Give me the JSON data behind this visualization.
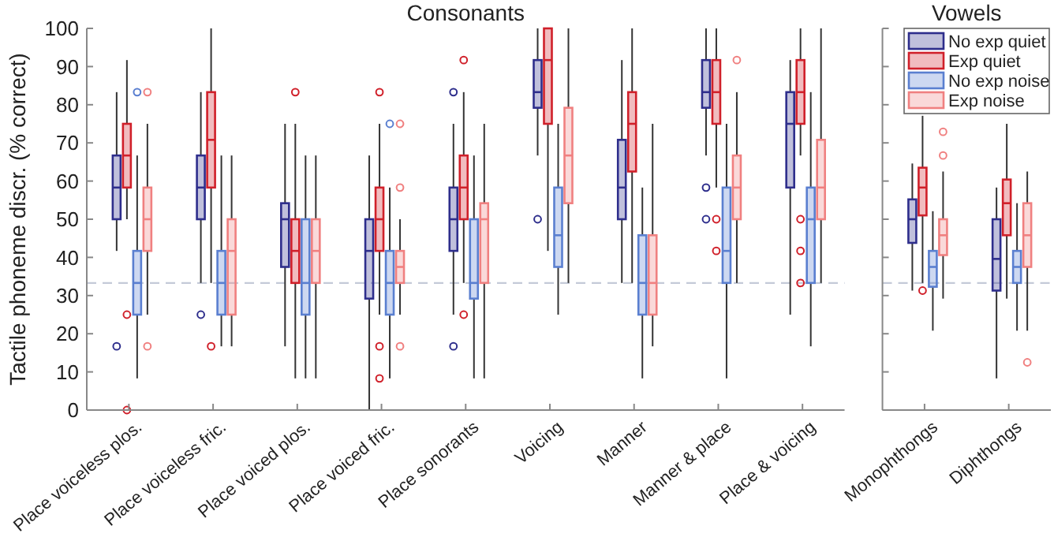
{
  "chart_data": [
    {
      "type": "box",
      "title": "Consonants",
      "ylabel": "Tactile phoneme discr. (% correct)",
      "categories": [
        "Place voiceless plos.",
        "Place voiceless fric.",
        "Place voiced plos.",
        "Place voiced fric.",
        "Place sonorants",
        "Voicing",
        "Manner",
        "Manner & place",
        "Place & voicing"
      ],
      "ylim": [
        0,
        100
      ],
      "yticks": [
        0,
        10,
        20,
        30,
        40,
        50,
        60,
        70,
        80,
        90,
        100
      ],
      "grid": false,
      "legend": false,
      "ref_lines": [
        {
          "axis": "y",
          "value": 33.3,
          "color": "#c4cad8",
          "line_style": "dashed"
        }
      ],
      "series": [
        {
          "color": "#2e2e8c",
          "boxes": [
            {
              "low": 41.7,
              "q1": 50,
              "median": 58.3,
              "q3": 66.7,
              "high": 83.3,
              "outliers": [
                16.7
              ]
            },
            {
              "low": 33.3,
              "q1": 50,
              "median": 58.3,
              "q3": 66.7,
              "high": 83.3,
              "outliers": [
                25
              ]
            },
            {
              "low": 16.7,
              "q1": 37.5,
              "median": 50,
              "q3": 54.2,
              "high": 75
            },
            {
              "low": 0,
              "q1": 29.2,
              "median": 41.7,
              "q3": 50,
              "high": 66.7
            },
            {
              "low": 25,
              "q1": 41.7,
              "median": 50,
              "q3": 58.3,
              "high": 75,
              "outliers": [
                83.3,
                16.7
              ]
            },
            {
              "low": 66.7,
              "q1": 79.2,
              "median": 83.3,
              "q3": 91.7,
              "high": 100,
              "outliers": [
                50
              ]
            },
            {
              "low": 33.3,
              "q1": 50,
              "median": 58.3,
              "q3": 70.8,
              "high": 91.7
            },
            {
              "low": 66.7,
              "q1": 79.2,
              "median": 83.3,
              "q3": 91.7,
              "high": 100,
              "outliers": [
                58.3,
                50
              ]
            },
            {
              "low": 25,
              "q1": 58.3,
              "median": 75,
              "q3": 83.3,
              "high": 91.7
            }
          ]
        },
        {
          "color": "#d0202a",
          "boxes": [
            {
              "low": 50,
              "q1": 58.3,
              "median": 66.7,
              "q3": 75,
              "high": 91.7,
              "outliers": [
                25,
                0
              ]
            },
            {
              "low": 33.3,
              "q1": 58.3,
              "median": 70.8,
              "q3": 83.3,
              "high": 100,
              "outliers": [
                16.7
              ]
            },
            {
              "low": 8.3,
              "q1": 33.3,
              "median": 41.7,
              "q3": 50,
              "high": 75,
              "outliers": [
                83.3
              ]
            },
            {
              "low": 25,
              "q1": 41.7,
              "median": 50,
              "q3": 58.3,
              "high": 75,
              "outliers": [
                83.3,
                16.7,
                8.3
              ]
            },
            {
              "low": 33.3,
              "q1": 50,
              "median": 58.3,
              "q3": 66.7,
              "high": 83.3,
              "outliers": [
                91.7,
                25
              ]
            },
            {
              "low": 41.7,
              "q1": 75,
              "median": 91.7,
              "q3": 100,
              "high": 100
            },
            {
              "low": 33.3,
              "q1": 62.5,
              "median": 75,
              "q3": 83.3,
              "high": 100
            },
            {
              "low": 58.3,
              "q1": 75,
              "median": 83.3,
              "q3": 91.7,
              "high": 100,
              "outliers": [
                50,
                41.7
              ]
            },
            {
              "low": 66.7,
              "q1": 75,
              "median": 83.3,
              "q3": 91.7,
              "high": 100,
              "outliers": [
                50,
                41.7,
                33.3
              ]
            }
          ]
        },
        {
          "color": "#5a7fd0",
          "boxes": [
            {
              "low": 8.3,
              "q1": 25,
              "median": 33.3,
              "q3": 41.7,
              "high": 66.7,
              "outliers": [
                83.3
              ]
            },
            {
              "low": 16.7,
              "q1": 25,
              "median": 33.3,
              "q3": 41.7,
              "high": 66.7
            },
            {
              "low": 8.3,
              "q1": 25,
              "median": 33.3,
              "q3": 50,
              "high": 66.7
            },
            {
              "low": 8.3,
              "q1": 25,
              "median": 33.3,
              "q3": 41.7,
              "high": 58.3,
              "outliers": [
                75
              ]
            },
            {
              "low": 8.3,
              "q1": 29.2,
              "median": 33.3,
              "q3": 50,
              "high": 66.7
            },
            {
              "low": 25,
              "q1": 37.5,
              "median": 45.8,
              "q3": 58.3,
              "high": 75
            },
            {
              "low": 8.3,
              "q1": 25,
              "median": 33.3,
              "q3": 45.8,
              "high": 58.3
            },
            {
              "low": 8.3,
              "q1": 33.3,
              "median": 41.7,
              "q3": 58.3,
              "high": 75
            },
            {
              "low": 16.7,
              "q1": 33.3,
              "median": 50,
              "q3": 58.3,
              "high": 83.3
            }
          ]
        },
        {
          "color": "#f08080",
          "boxes": [
            {
              "low": 25,
              "q1": 41.7,
              "median": 50,
              "q3": 58.3,
              "high": 75,
              "outliers": [
                83.3,
                16.7
              ]
            },
            {
              "low": 16.7,
              "q1": 25,
              "median": 41.7,
              "q3": 50,
              "high": 66.7
            },
            {
              "low": 8.3,
              "q1": 33.3,
              "median": 41.7,
              "q3": 50,
              "high": 66.7
            },
            {
              "low": 25,
              "q1": 33.3,
              "median": 37.5,
              "q3": 41.7,
              "high": 50,
              "outliers": [
                75,
                58.3,
                16.7
              ]
            },
            {
              "low": 8.3,
              "q1": 33.3,
              "median": 50,
              "q3": 54.2,
              "high": 75
            },
            {
              "low": 33.3,
              "q1": 54.2,
              "median": 66.7,
              "q3": 79.2,
              "high": 100
            },
            {
              "low": 16.7,
              "q1": 25,
              "median": 33.3,
              "q3": 45.8,
              "high": 75
            },
            {
              "low": 33.3,
              "q1": 50,
              "median": 58.3,
              "q3": 66.7,
              "high": 83.3,
              "outliers": [
                91.7
              ]
            },
            {
              "low": 33.3,
              "q1": 50,
              "median": 58.3,
              "q3": 70.8,
              "high": 100
            }
          ]
        }
      ]
    },
    {
      "type": "box",
      "title": "Vowels",
      "categories": [
        "Monophthongs",
        "Diphthongs"
      ],
      "ylim": [
        0,
        100
      ],
      "yticks": [
        0,
        10,
        20,
        30,
        40,
        50,
        60,
        70,
        80,
        90,
        100
      ],
      "tick_labels": "x",
      "grid": false,
      "legend": "top right",
      "ref_lines": [
        {
          "axis": "y",
          "value": 33.3,
          "color": "#c4cad8",
          "line_style": "dashed"
        }
      ],
      "series": [
        {
          "name": "No exp quiet",
          "color": "#2e2e8c",
          "boxes": [
            {
              "low": 31.3,
              "q1": 43.8,
              "median": 50,
              "q3": 55.2,
              "high": 64.6
            },
            {
              "low": 8.3,
              "q1": 31.3,
              "median": 39.6,
              "q3": 50,
              "high": 58.3
            }
          ]
        },
        {
          "name": "Exp quiet",
          "color": "#d0202a",
          "boxes": [
            {
              "low": 33.3,
              "q1": 51,
              "median": 58.3,
              "q3": 63.5,
              "high": 77.1,
              "outliers": [
                31.3
              ]
            },
            {
              "low": 29.2,
              "q1": 45.8,
              "median": 54.2,
              "q3": 60.4,
              "high": 75
            }
          ]
        },
        {
          "name": "No exp noise",
          "color": "#5a7fd0",
          "boxes": [
            {
              "low": 20.8,
              "q1": 32.3,
              "median": 37.5,
              "q3": 41.7,
              "high": 52.1
            },
            {
              "low": 20.8,
              "q1": 33.3,
              "median": 37.5,
              "q3": 41.7,
              "high": 54.2
            }
          ]
        },
        {
          "name": "Exp noise",
          "color": "#f08080",
          "boxes": [
            {
              "low": 29.2,
              "q1": 40.6,
              "median": 45.8,
              "q3": 50,
              "high": 62.5,
              "outliers": [
                72.9,
                66.7
              ]
            },
            {
              "low": 20.8,
              "q1": 37.5,
              "median": 45.8,
              "q3": 54.2,
              "high": 62.5,
              "outliers": [
                12.5
              ]
            }
          ]
        }
      ]
    }
  ]
}
